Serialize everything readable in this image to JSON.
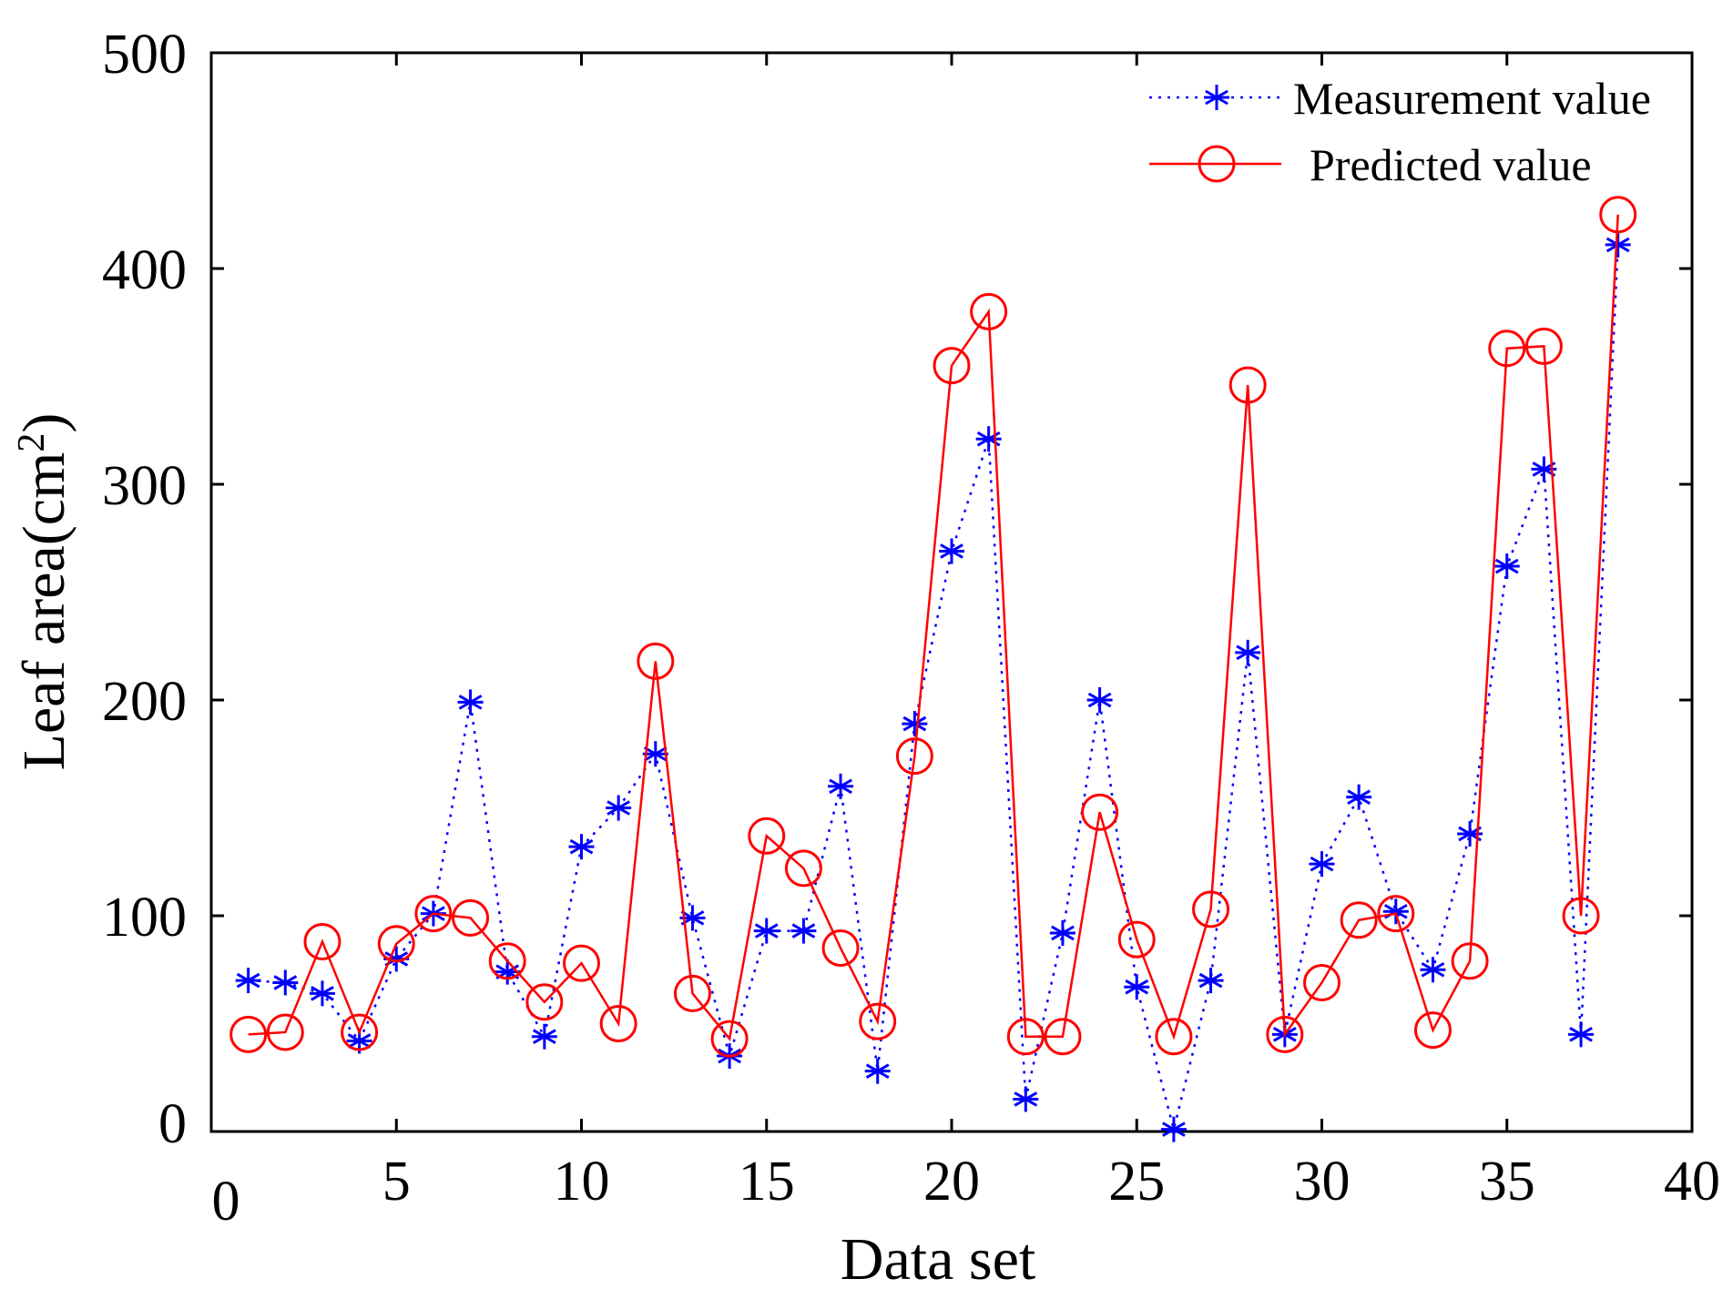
{
  "chart_data": {
    "type": "line",
    "title": "",
    "xlabel": "Data set",
    "ylabel": "Leaf area(cm²)",
    "ylabel_base": "Leaf area(cm",
    "ylabel_sup": "2",
    "ylabel_tail": ")",
    "xlim": [
      0,
      40
    ],
    "ylim": [
      0,
      500
    ],
    "xticks": [
      "0",
      "5",
      "10",
      "15",
      "20",
      "25",
      "30",
      "35",
      "40"
    ],
    "yticks": [
      "0",
      "100",
      "200",
      "300",
      "400",
      "500"
    ],
    "xtick_values": [
      0,
      5,
      10,
      15,
      20,
      25,
      30,
      35,
      40
    ],
    "ytick_values": [
      0,
      100,
      200,
      300,
      400,
      500
    ],
    "grid": false,
    "legend_position": "top-right",
    "x": [
      1,
      2,
      3,
      4,
      5,
      6,
      7,
      8,
      9,
      10,
      11,
      12,
      13,
      14,
      15,
      16,
      17,
      18,
      19,
      20,
      21,
      22,
      23,
      24,
      25,
      26,
      27,
      28,
      29,
      30,
      31,
      32,
      33,
      34,
      35,
      36,
      37,
      38
    ],
    "series": [
      {
        "name": "Measurement value",
        "color": "#0000ff",
        "line_style": "dotted",
        "marker": "asterisk",
        "values": [
          70,
          69,
          64,
          42,
          80,
          101,
          199,
          74,
          44,
          132,
          150,
          175,
          99,
          35,
          93,
          93,
          160,
          28,
          189,
          269,
          321,
          15,
          92,
          200,
          67,
          1,
          70,
          222,
          45,
          124,
          155,
          102,
          75,
          138,
          262,
          307,
          45,
          411
        ]
      },
      {
        "name": "Predicted value",
        "color": "#ff0000",
        "line_style": "solid",
        "marker": "circle",
        "values": [
          45,
          46,
          88,
          46,
          87,
          101,
          99,
          79,
          60,
          78,
          50,
          218,
          64,
          43,
          137,
          122,
          85,
          51,
          174,
          355,
          380,
          44,
          44,
          148,
          89,
          44,
          103,
          346,
          45,
          69,
          98,
          101,
          47,
          79,
          363,
          364,
          100,
          425
        ]
      }
    ]
  }
}
